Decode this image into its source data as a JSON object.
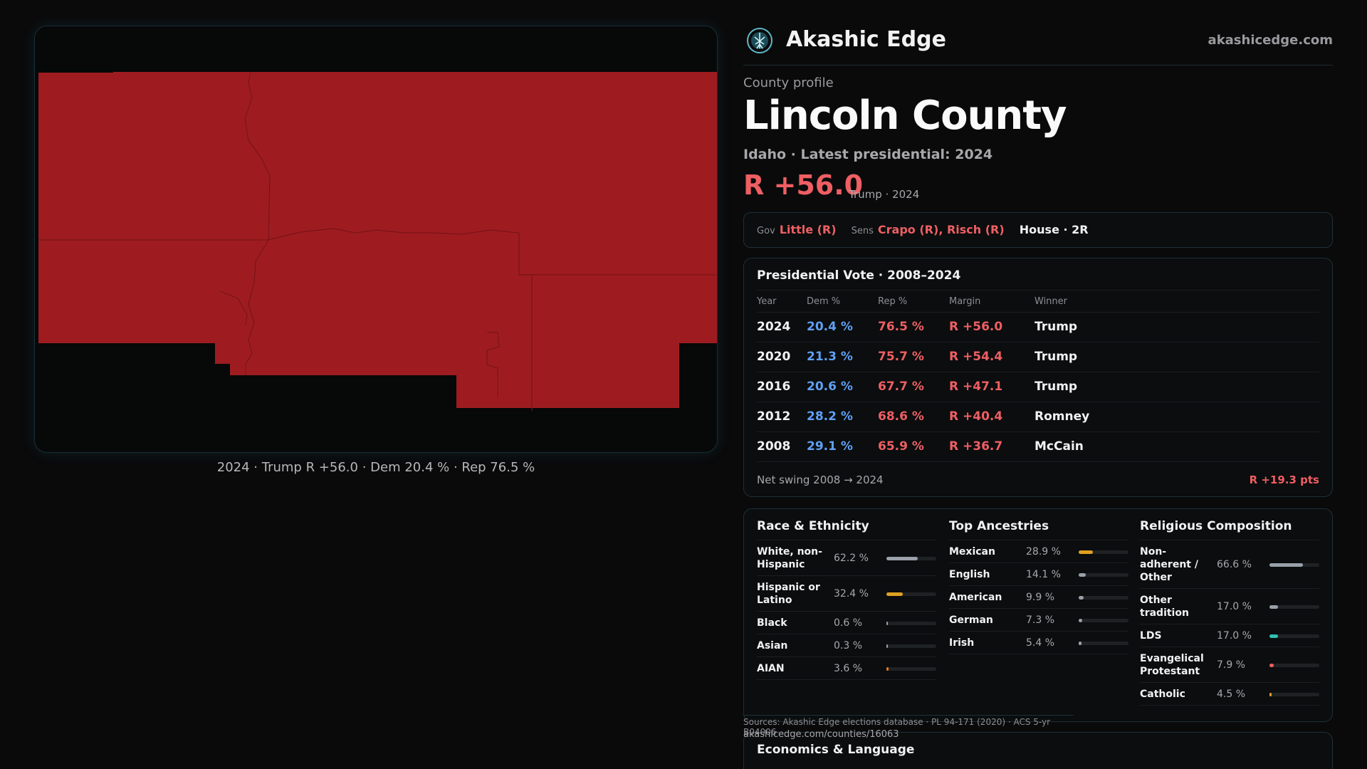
{
  "map": {
    "caption": "2024 · Trump R +56.0 · Dem 20.4 % · Rep 76.5 %",
    "fill_color": "#9e1c20",
    "border_color": "#7a1417"
  },
  "brand": {
    "name": "Akashic Edge",
    "site": "akashicedge.com",
    "logo_icon": "tree-of-life-icon"
  },
  "header": {
    "eyebrow": "County profile",
    "title": "Lincoln County",
    "subtitle": "Idaho · Latest presidential: 2024",
    "margin": "R +56.0",
    "margin_note": "Trump · 2024"
  },
  "officials": {
    "gov_label": "Gov",
    "gov": "Little (R)",
    "sens_label": "Sens",
    "sens": "Crapo (R), Risch (R)",
    "house": "House · 2R"
  },
  "votes": {
    "title": "Presidential Vote · 2008–2024",
    "headers": {
      "year": "Year",
      "dem": "Dem %",
      "rep": "Rep %",
      "margin": "Margin",
      "winner": "Winner"
    },
    "rows": [
      {
        "year": "2024",
        "dem": "20.4 %",
        "rep": "76.5 %",
        "margin": "R +56.0",
        "winner": "Trump"
      },
      {
        "year": "2020",
        "dem": "21.3 %",
        "rep": "75.7 %",
        "margin": "R +54.4",
        "winner": "Trump"
      },
      {
        "year": "2016",
        "dem": "20.6 %",
        "rep": "67.7 %",
        "margin": "R +47.1",
        "winner": "Trump"
      },
      {
        "year": "2012",
        "dem": "28.2 %",
        "rep": "68.6 %",
        "margin": "R +40.4",
        "winner": "Romney"
      },
      {
        "year": "2008",
        "dem": "29.1 %",
        "rep": "65.9 %",
        "margin": "R +36.7",
        "winner": "McCain"
      }
    ],
    "swing_label": "Net swing 2008 → 2024",
    "swing_value": "R +19.3 pts"
  },
  "race": {
    "title": "Race & Ethnicity",
    "items": [
      {
        "label": "White, non-Hispanic",
        "value": "62.2 %",
        "pct": 62.2,
        "color": "#9aa1aa"
      },
      {
        "label": "Hispanic or Latino",
        "value": "32.4 %",
        "pct": 32.4,
        "color": "#e0a020"
      },
      {
        "label": "Black",
        "value": "0.6 %",
        "pct": 0.6,
        "color": "#9aa1aa"
      },
      {
        "label": "Asian",
        "value": "0.3 %",
        "pct": 0.3,
        "color": "#9aa1aa"
      },
      {
        "label": "AIAN",
        "value": "3.6 %",
        "pct": 3.6,
        "color": "#e07a20"
      }
    ]
  },
  "ancestry": {
    "title": "Top Ancestries",
    "items": [
      {
        "label": "Mexican",
        "value": "28.9 %",
        "pct": 28.9,
        "color": "#e0a020"
      },
      {
        "label": "English",
        "value": "14.1 %",
        "pct": 14.1,
        "color": "#9aa1aa"
      },
      {
        "label": "American",
        "value": "9.9 %",
        "pct": 9.9,
        "color": "#9aa1aa"
      },
      {
        "label": "German",
        "value": "7.3 %",
        "pct": 7.3,
        "color": "#9aa1aa"
      },
      {
        "label": "Irish",
        "value": "5.4 %",
        "pct": 5.4,
        "color": "#9aa1aa"
      }
    ]
  },
  "religion": {
    "title": "Religious Composition",
    "items": [
      {
        "label": "Non-adherent / Other",
        "value": "66.6 %",
        "pct": 66.6,
        "color": "#9aa1aa"
      },
      {
        "label": "Other tradition",
        "value": "17.0 %",
        "pct": 17.0,
        "color": "#9aa1aa"
      },
      {
        "label": "LDS",
        "value": "17.0 %",
        "pct": 17.0,
        "color": "#2fc0b0"
      },
      {
        "label": "Evangelical Protestant",
        "value": "7.9 %",
        "pct": 7.9,
        "color": "#ee5f63"
      },
      {
        "label": "Catholic",
        "value": "4.5 %",
        "pct": 4.5,
        "color": "#e0a020"
      }
    ]
  },
  "sources": {
    "text": "Sources: Akashic Edge elections database · PL 94-171 (2020) · ACS 5-yr B04006",
    "url": "akashicedge.com/counties/16063"
  },
  "economics": {
    "title": "Economics & Language"
  }
}
